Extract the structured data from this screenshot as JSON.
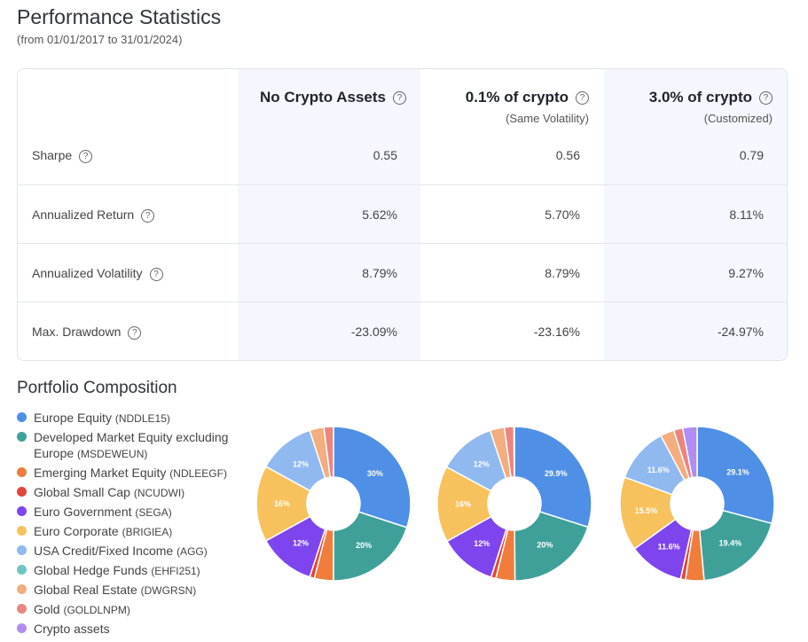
{
  "header": {
    "title": "Performance Statistics",
    "subtitle": "(from 01/01/2017 to 31/01/2024)"
  },
  "table": {
    "columns": [
      {
        "title": "No Crypto Assets",
        "sub": ""
      },
      {
        "title": "0.1% of crypto",
        "sub": "(Same Volatility)"
      },
      {
        "title": "3.0% of crypto",
        "sub": "(Customized)"
      }
    ],
    "rows": [
      {
        "label": "Sharpe",
        "values": [
          "0.55",
          "0.56",
          "0.79"
        ]
      },
      {
        "label": "Annualized Return",
        "values": [
          "5.62%",
          "5.70%",
          "8.11%"
        ]
      },
      {
        "label": "Annualized Volatility",
        "values": [
          "8.79%",
          "8.79%",
          "9.27%"
        ]
      },
      {
        "label": "Max. Drawdown",
        "values": [
          "-23.09%",
          "-23.16%",
          "-24.97%"
        ]
      }
    ],
    "help_icon": "question-circle-icon"
  },
  "composition_title": "Portfolio Composition",
  "chart_data": {
    "type": "pie",
    "donut": true,
    "legend_placement": "left",
    "categories": [
      {
        "name": "Europe Equity",
        "code": "(NDDLE15)",
        "color": "#4f8fe6"
      },
      {
        "name": "Developed Market Equity excluding Europe",
        "code": "(MSDEWEUN)",
        "color": "#3fa09a"
      },
      {
        "name": "Emerging Market Equity",
        "code": "(NDLEEGF)",
        "color": "#f07d3c"
      },
      {
        "name": "Global Small Cap",
        "code": "(NCUDWI)",
        "color": "#e0453a"
      },
      {
        "name": "Euro Government",
        "code": "(SEGA)",
        "color": "#7e45ef"
      },
      {
        "name": "Euro Corporate",
        "code": "(BRIGIEA)",
        "color": "#f7c25d"
      },
      {
        "name": "USA Credit/Fixed Income",
        "code": "(AGG)",
        "color": "#8fb9ef"
      },
      {
        "name": "Global Hedge Funds",
        "code": "(EHFI251)",
        "color": "#6fc6c0"
      },
      {
        "name": "Global Real Estate",
        "code": "(DWGRSN)",
        "color": "#f4ad7e"
      },
      {
        "name": "Gold",
        "code": "(GOLDLNPM)",
        "color": "#ec8580"
      },
      {
        "name": "Crypto assets",
        "code": "",
        "color": "#b18cf2"
      }
    ],
    "series": [
      {
        "values": [
          30,
          20,
          4,
          1,
          12,
          16,
          12,
          0,
          3,
          2,
          0
        ],
        "labels": [
          "30%",
          "20%",
          "",
          "",
          "12%",
          "16%",
          "12%",
          "",
          "",
          "",
          ""
        ]
      },
      {
        "values": [
          29.9,
          20,
          4,
          1,
          12,
          16,
          12,
          0,
          3,
          2,
          0.1
        ],
        "labels": [
          "29.9%",
          "20%",
          "",
          "",
          "12%",
          "16%",
          "12%",
          "",
          "",
          "",
          ""
        ]
      },
      {
        "values": [
          29.1,
          19.4,
          3.9,
          1,
          11.6,
          15.5,
          11.6,
          0,
          2.9,
          1.9,
          3
        ],
        "labels": [
          "29.1%",
          "19.4%",
          "",
          "",
          "11.6%",
          "15.5%",
          "11.6%",
          "",
          "",
          "",
          ""
        ]
      }
    ]
  }
}
